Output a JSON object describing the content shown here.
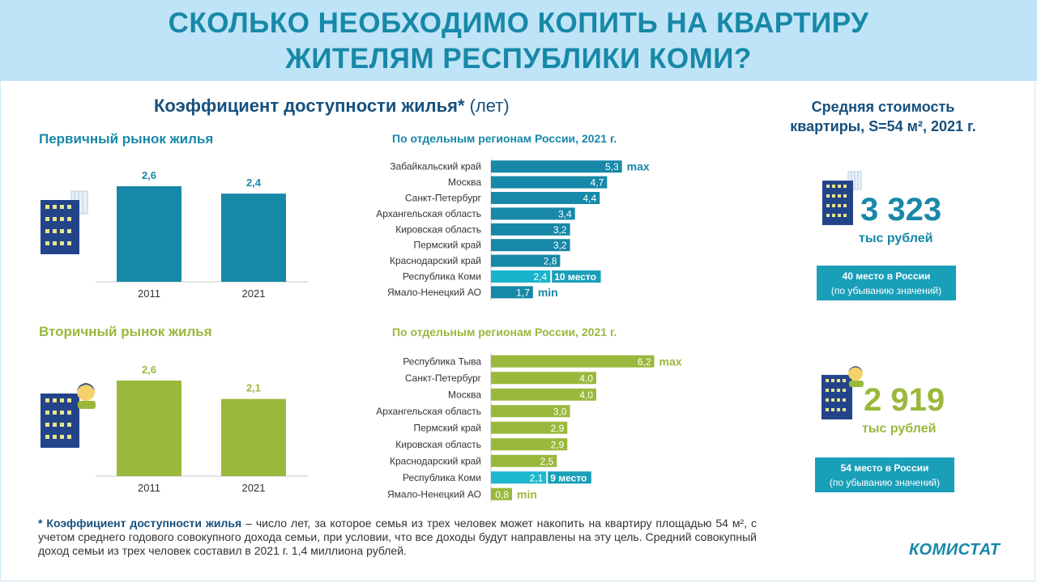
{
  "header": {
    "line1": "СКОЛЬКО НЕОБХОДИМО КОПИТЬ НА КВАРТИРУ",
    "line2": "ЖИТЕЛЯМ РЕСПУБЛИКИ КОМИ?"
  },
  "main_title": {
    "text": "Коэффициент доступности жилья*",
    "note": " (лет)"
  },
  "primary": {
    "title": "Первичный рынок жилья",
    "regions_title": "По отдельным регионам России, 2021 г."
  },
  "secondary": {
    "title": "Вторичный рынок жилья",
    "regions_title": "По отдельным регионам России, 2021 г."
  },
  "right": {
    "title_line1": "Средняя стоимость",
    "title_line2": "квартиры, S=54 м², 2021 г.",
    "primary_value": "3 323",
    "primary_unit": "тыс рублей",
    "primary_rank_line1": "40 место в России",
    "primary_rank_line2": "(по убыванию значений)",
    "secondary_value": "2 919",
    "secondary_unit": "тыс рублей",
    "secondary_rank_line1": "54 место в России",
    "secondary_rank_line2": "(по убыванию значений)"
  },
  "footnote": {
    "term": "* Коэффициент доступности жилья",
    "text": " – число лет, за которое семья из трех человек может накопить на квартиру площадью 54 м², с учетом среднего годового совокупного дохода семьи, при условии, что все доходы будут направлены на эту цель. Средний совокупный доход семьи из трех человек составил в 2021 г. 1,4 миллиона  рублей."
  },
  "logo": "КОМИСТАТ",
  "colors": {
    "blue": "#1788a8",
    "blue_highlight": "#19b3cc",
    "green": "#9ab83c",
    "green_highlight": "#1fb9cf",
    "dark_blue": "#16507e"
  },
  "icons": [
    "building-icon",
    "person-icon"
  ],
  "chart_data": [
    {
      "type": "bar",
      "categories": [
        "2011",
        "2021"
      ],
      "values": [
        2.6,
        2.4
      ],
      "value_labels": [
        "2,6",
        "2,4"
      ],
      "color": "#1788a8"
    },
    {
      "type": "bar",
      "orientation": "horizontal",
      "categories": [
        "Забайкальский край",
        "Москва",
        "Санкт-Петербург",
        "Архангельская область",
        "Кировская область",
        "Пермский край",
        "Краснодарский край",
        "Республика Коми",
        "Ямало-Ненецкий АО"
      ],
      "values": [
        5.3,
        4.7,
        4.4,
        3.4,
        3.2,
        3.2,
        2.8,
        2.4,
        1.7
      ],
      "value_labels": [
        "5,3",
        "4,7",
        "4,4",
        "3,4",
        "3,2",
        "3,2",
        "2,8",
        "2,4",
        "1,7"
      ],
      "annotations": [
        {
          "category": "Забайкальский край",
          "text": "max"
        },
        {
          "category": "Республика Коми",
          "text": "10 место",
          "boxed": true
        },
        {
          "category": "Ямало-Ненецкий АО",
          "text": "min"
        }
      ],
      "highlight": "Республика Коми",
      "color": "#1788a8",
      "highlight_color": "#19b3cc"
    },
    {
      "type": "bar",
      "categories": [
        "2011",
        "2021"
      ],
      "values": [
        2.6,
        2.1
      ],
      "value_labels": [
        "2,6",
        "2,1"
      ],
      "color": "#9ab83c"
    },
    {
      "type": "bar",
      "orientation": "horizontal",
      "categories": [
        "Республика Тыва",
        "Санкт-Петербург",
        "Москва",
        "Архангельская область",
        "Пермский край",
        "Кировская область",
        "Краснодарский край",
        "Республика Коми",
        "Ямало-Ненецкий АО"
      ],
      "values": [
        6.2,
        4.0,
        4.0,
        3.0,
        2.9,
        2.9,
        2.5,
        2.1,
        0.8
      ],
      "value_labels": [
        "6,2",
        "4,0",
        "4,0",
        "3,0",
        "2,9",
        "2,9",
        "2,5",
        "2,1",
        "0,8"
      ],
      "annotations": [
        {
          "category": "Республика Тыва",
          "text": "max"
        },
        {
          "category": "Республика Коми",
          "text": "9 место",
          "boxed": true
        },
        {
          "category": "Ямало-Ненецкий АО",
          "text": "min"
        }
      ],
      "highlight": "Республика Коми",
      "color": "#9ab83c",
      "highlight_color": "#1fb9cf"
    }
  ]
}
